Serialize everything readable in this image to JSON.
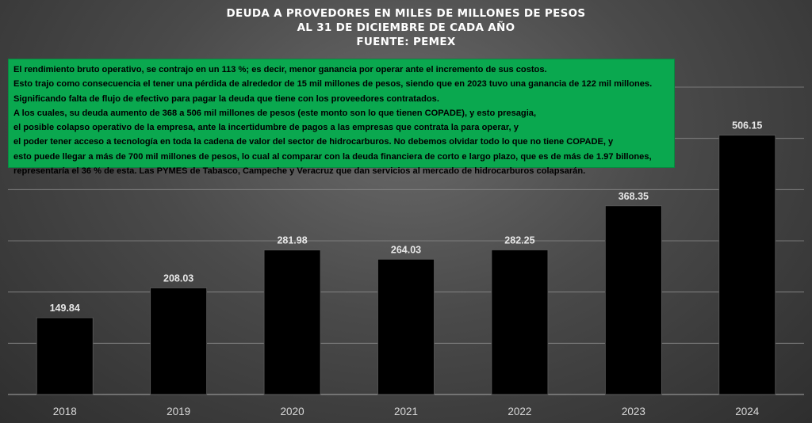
{
  "chart_data": {
    "type": "bar",
    "title": [
      "DEUDA A PROVEDORES EN MILES DE MILLONES DE PESOS",
      "AL 31 DE DICIEMBRE DE CADA AÑO",
      "FUENTE: PEMEX"
    ],
    "categories": [
      "2018",
      "2019",
      "2020",
      "2021",
      "2022",
      "2023",
      "2024"
    ],
    "values": [
      149.84,
      208.03,
      281.98,
      264.03,
      282.25,
      368.35,
      506.15
    ],
    "value_labels": [
      "149.84",
      "208.03",
      "281.98",
      "264.03",
      "282.25",
      "368.35",
      "506.15"
    ],
    "ylim": [
      0,
      600
    ],
    "grid": true,
    "legend": "none",
    "bar_color": "#000000",
    "xlabel": "",
    "ylabel": ""
  },
  "annotation": {
    "background": "#0aa84f",
    "lines": [
      "El rendimiento bruto operativo, se contrajo en un 113 %; es decir, menor ganancia por operar ante el incremento de sus costos.",
      " Esto trajo como consecuencia  el tener una pérdida de alrededor de 15 mil millones de pesos, siendo que en 2023 tuvo una ganancia de 122 mil millones.",
      " Significando falta de flujo de efectivo para pagar la deuda que tiene con los proveedores contratados.",
      "  A los cuales, su deuda aumento de 368 a 506 mil millones de pesos (este monto son lo que tienen COPADE), y esto presagia,",
      "  el posible colapso operativo de la empresa, ante la incertidumbre de pagos a las empresas que contrata la para operar, y",
      "el poder tener acceso a tecnología en toda la cadena de valor del sector de hidrocarburos.  No debemos olvidar todo lo que no tiene COPADE, y",
      "esto puede llegar a más de 700 mil millones de pesos, lo cual al comparar con la deuda financiera de corto e largo plazo, que es de más de 1.97 billones,",
      "representaría el 36 % de esta. Las PYMES de Tabasco, Campeche y Veracruz que dan servicios al mercado de hidrocarburos colapsarán."
    ]
  }
}
